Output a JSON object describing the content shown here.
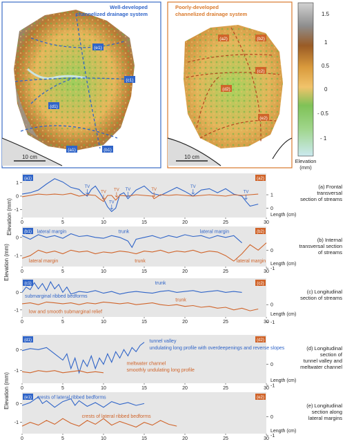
{
  "maps": {
    "left": {
      "title_line1": "Well-developed",
      "title_line2": "channelized drainage system",
      "scale_label": "10 cm",
      "frame_color": "#3a6cc4",
      "markers": [
        "(a1)",
        "(b1)",
        "(c1)",
        "(d1)",
        "(e1)"
      ]
    },
    "right": {
      "title_line1": "Poorly-developed",
      "title_line2": "channelized drainage system",
      "scale_label": "10 cm",
      "frame_color": "#d9792b",
      "markers": [
        "(a2)",
        "(b2)",
        "(c2)",
        "(d2)",
        "(e2)"
      ]
    },
    "colorbar": {
      "ticks": [
        "1.5",
        "1",
        "0.5",
        "0",
        "- 0.5",
        "- 1"
      ],
      "label_line1": "Elevation",
      "label_line2": "(mm)",
      "colors": [
        "#c8e8ef",
        "#8fcf6e",
        "#6fb84c",
        "#e9b95a",
        "#c9862f",
        "#9b5a22",
        "#8b8b8b",
        "#c8c8c8"
      ]
    }
  },
  "axes": {
    "left_ylabel": "Elevation (mm)",
    "xlabel": "Length (cm)",
    "x_ticks": [
      "0",
      "5",
      "10",
      "15",
      "20",
      "25",
      "30"
    ]
  },
  "colors": {
    "blue": "#2f64c8",
    "orange": "#d0642a",
    "panel_bg": "#e6e6e6"
  },
  "chart_data": [
    {
      "type": "line",
      "panel": "a",
      "tag_left": "(a1)",
      "tag_right": "(a2)",
      "caption": [
        "(a) Frontal",
        "transversal",
        "section of streams"
      ],
      "x_range": [
        0,
        30
      ],
      "left_ticks": [
        "1",
        "0",
        "-1"
      ],
      "right_ticks": [
        "1",
        "0"
      ],
      "annotations": [
        {
          "text": "TV",
          "x": 8.0,
          "series": "blue"
        },
        {
          "text": "TV",
          "x": 11.0,
          "series": "blue"
        },
        {
          "text": "TV",
          "x": 13.0,
          "series": "blue"
        },
        {
          "text": "TV",
          "x": 21.0,
          "series": "blue"
        },
        {
          "text": "TV",
          "x": 27.5,
          "series": "blue"
        },
        {
          "text": "TV",
          "x": 10.0,
          "series": "orange"
        },
        {
          "text": "TV",
          "x": 11.6,
          "series": "orange"
        },
        {
          "text": "TV",
          "x": 16.2,
          "series": "orange"
        }
      ],
      "series": [
        {
          "color": "blue",
          "x": [
            0,
            1,
            2,
            3,
            4,
            5,
            6,
            7,
            7.5,
            8,
            8.5,
            9,
            9.5,
            10,
            10.5,
            11,
            11.5,
            12,
            12.5,
            13,
            14,
            15,
            16,
            17,
            18,
            19,
            20,
            21,
            22,
            23,
            24,
            25,
            26,
            27,
            27.5,
            28,
            29
          ],
          "y": [
            0.15,
            0.25,
            0.45,
            0.9,
            1.3,
            1.05,
            0.65,
            0.5,
            0.2,
            0.0,
            0.5,
            0.75,
            0.3,
            -0.2,
            -0.8,
            -1.15,
            -0.9,
            0.1,
            0.25,
            -0.2,
            0.45,
            0.75,
            0.2,
            0.05,
            0.35,
            0.65,
            0.35,
            0.0,
            0.45,
            0.55,
            0.25,
            0.55,
            0.15,
            0.0,
            -0.4,
            -0.75,
            -0.6
          ]
        },
        {
          "color": "orange",
          "x": [
            0,
            1,
            2,
            3,
            4,
            5,
            6,
            7,
            8,
            9,
            9.5,
            10,
            10.5,
            11,
            11.5,
            12,
            13,
            14,
            15,
            16,
            16.2,
            17,
            18,
            19,
            20,
            21,
            22,
            23,
            24,
            25,
            26,
            27,
            28,
            29
          ],
          "y": [
            -0.05,
            0.05,
            0.15,
            0.1,
            0.15,
            0.1,
            0.2,
            0.0,
            0.1,
            0.05,
            -0.2,
            -0.4,
            0.05,
            0.05,
            -0.3,
            0.05,
            0.0,
            0.1,
            0.05,
            0.0,
            -0.2,
            0.1,
            0.05,
            0.1,
            0.05,
            0.0,
            0.05,
            0.1,
            0.05,
            0.0,
            0.1,
            0.05,
            0.1,
            0.15
          ]
        }
      ]
    },
    {
      "type": "line",
      "panel": "b",
      "tag_left": "(b1)",
      "tag_right": "(b2)",
      "caption": [
        "(b) Internal",
        "transversal section",
        "of streams"
      ],
      "x_range": [
        0,
        30
      ],
      "left_ticks": [
        "0",
        "-1"
      ],
      "right_ticks": [
        "0",
        "-1"
      ],
      "labels": [
        {
          "text": "lateral margin",
          "x": 1.5,
          "row": "top",
          "color": "blue"
        },
        {
          "text": "trunk",
          "x": 11.5,
          "row": "top",
          "color": "blue"
        },
        {
          "text": "lateral margin",
          "x": 21.5,
          "row": "top",
          "color": "blue"
        },
        {
          "text": "lateral margin",
          "x": 0.5,
          "row": "bottom",
          "color": "orange"
        },
        {
          "text": "trunk",
          "x": 13.5,
          "row": "bottom",
          "color": "orange"
        },
        {
          "text": "lateral margin",
          "x": 26.0,
          "row": "bottom",
          "color": "orange"
        }
      ],
      "series": [
        {
          "color": "blue",
          "x": [
            0,
            1,
            2,
            3,
            4,
            5,
            6,
            7,
            8,
            9,
            10,
            11,
            12,
            13,
            13.5,
            14,
            15,
            16,
            17,
            18,
            19,
            20,
            21,
            22,
            23,
            24,
            25,
            26,
            27
          ],
          "y": [
            0.1,
            -0.1,
            0.15,
            0.0,
            0.1,
            -0.05,
            0.2,
            0.05,
            0.1,
            0.0,
            -0.05,
            0.1,
            0.0,
            -0.2,
            -0.55,
            -0.1,
            0.0,
            0.1,
            -0.05,
            0.1,
            0.0,
            0.15,
            0.05,
            0.1,
            -0.05,
            0.1,
            0.0,
            0.1,
            -0.3
          ]
        },
        {
          "color": "orange",
          "x": [
            0,
            1,
            2,
            3,
            4,
            5,
            6,
            7,
            8,
            9,
            10,
            11,
            12,
            13,
            14,
            15,
            16,
            17,
            18,
            19,
            20,
            21,
            22,
            23,
            24,
            25,
            26,
            27,
            28,
            29,
            30
          ],
          "y": [
            -1.15,
            -1.0,
            -0.7,
            -0.85,
            -0.75,
            -0.9,
            -0.7,
            -0.8,
            -0.75,
            -0.9,
            -0.8,
            -0.85,
            -0.75,
            -0.8,
            -0.9,
            -0.75,
            -0.8,
            -0.7,
            -0.85,
            -0.75,
            -0.8,
            -0.7,
            -0.85,
            -0.75,
            -0.8,
            -1.0,
            -1.3,
            -0.9,
            -0.4,
            -0.7,
            -0.3
          ]
        }
      ]
    },
    {
      "type": "line",
      "panel": "c",
      "tag_left": "(c1)",
      "tag_right": "(c2)",
      "caption": [
        "(c) Longitudinal",
        "section of streams"
      ],
      "x_range": [
        0,
        30
      ],
      "left_ticks": [
        "0",
        "-1"
      ],
      "right_ticks": [
        "0",
        "-1"
      ],
      "labels": [
        {
          "text": "trunk",
          "x": 16.0,
          "row": "top",
          "color": "blue"
        },
        {
          "text": "submarginal ribbed bedforms",
          "x": 0.0,
          "row": "middle",
          "color": "blue"
        },
        {
          "text": "trunk",
          "x": 18.5,
          "row": "middle2",
          "color": "orange"
        },
        {
          "text": "low and smooth submarginal relief",
          "x": 0.5,
          "row": "bottom",
          "color": "orange"
        }
      ],
      "series": [
        {
          "color": "blue",
          "x": [
            0,
            0.5,
            1,
            1.5,
            2,
            2.5,
            3,
            3.5,
            4,
            4.5,
            5,
            5.5,
            6,
            7,
            8,
            9,
            10,
            11,
            12,
            13,
            14,
            15,
            16,
            17,
            18,
            19,
            20,
            21,
            22,
            23,
            24,
            25,
            26,
            27
          ],
          "y": [
            0.0,
            0.3,
            0.15,
            0.55,
            0.2,
            0.5,
            0.1,
            0.6,
            0.2,
            0.45,
            0.0,
            0.3,
            -0.1,
            0.05,
            0.0,
            0.1,
            -0.05,
            0.05,
            -0.1,
            0.0,
            0.05,
            0.0,
            -0.05,
            0.05,
            0.1,
            0.0,
            0.05,
            0.1,
            0.0,
            0.05,
            0.1,
            0.0,
            0.05,
            0.0
          ]
        },
        {
          "color": "orange",
          "x": [
            0,
            1,
            2,
            3,
            4,
            5,
            6,
            7,
            8,
            9,
            10,
            11,
            12,
            13,
            14,
            15,
            16,
            17,
            18,
            19,
            20,
            21,
            22,
            23,
            24,
            25,
            26,
            27,
            28,
            29
          ],
          "y": [
            -0.65,
            -0.6,
            -0.7,
            -0.55,
            -0.6,
            -0.65,
            -0.6,
            -0.7,
            -0.6,
            -0.65,
            -0.55,
            -0.6,
            -0.65,
            -0.6,
            -0.7,
            -0.65,
            -0.6,
            -0.7,
            -0.75,
            -0.7,
            -0.8,
            -0.75,
            -0.85,
            -0.8,
            -0.9,
            -0.85,
            -1.0,
            -0.9,
            -1.05,
            -0.95
          ]
        }
      ]
    },
    {
      "type": "line",
      "panel": "d",
      "tag_left": "(d1)",
      "tag_right": "(d2)",
      "caption": [
        "(d) Longitudinal",
        "section of",
        "tunnel valley and",
        "meltwater channel"
      ],
      "x_range": [
        0,
        30
      ],
      "left_ticks": [
        "0",
        "-1"
      ],
      "right_ticks": [
        "0",
        "-1"
      ],
      "labels": [
        {
          "text": "tunnel valley",
          "x": 15.3,
          "row": "top",
          "color": "blue"
        },
        {
          "text": "undulating long profile with overdeepenings and reverse slopes",
          "x": 15.3,
          "row": "top2",
          "color": "blue"
        },
        {
          "text": "meltwater channel",
          "x": 12.5,
          "row": "mid",
          "color": "orange"
        },
        {
          "text": "smoothly undulating long profile",
          "x": 12.5,
          "row": "mid2",
          "color": "orange"
        }
      ],
      "series": [
        {
          "color": "blue",
          "x": [
            0,
            1,
            2,
            3,
            4,
            5,
            5.5,
            6,
            6.5,
            7,
            7.5,
            8,
            8.5,
            9,
            9.5,
            10,
            10.5,
            11,
            11.5,
            12,
            12.5,
            13,
            13.5,
            14,
            14.5,
            15
          ],
          "y": [
            -0.05,
            0.05,
            0.0,
            0.1,
            -0.2,
            -0.5,
            -0.2,
            -0.9,
            -0.4,
            -1.1,
            -0.5,
            -0.8,
            -0.3,
            -0.9,
            -0.4,
            -0.7,
            -0.2,
            -0.6,
            -0.1,
            -0.4,
            0.0,
            -0.3,
            0.1,
            -0.1,
            0.2,
            0.35
          ]
        },
        {
          "color": "orange",
          "x": [
            0,
            1,
            2,
            3,
            4,
            5,
            6,
            7,
            8,
            9,
            10
          ],
          "y": [
            -1.05,
            -1.1,
            -1.0,
            -1.05,
            -1.0,
            -1.1,
            -1.05,
            -1.0,
            -1.1,
            -1.05,
            -1.1
          ]
        }
      ]
    },
    {
      "type": "line",
      "panel": "e",
      "tag_left": "(e1)",
      "tag_right": "(e2)",
      "caption": [
        "(e) Longitudinal",
        "section along",
        "lateral margins"
      ],
      "x_range": [
        0,
        30
      ],
      "left_ticks": [
        "0",
        "-1"
      ],
      "right_ticks": [
        "0",
        "-1"
      ],
      "labels": [
        {
          "text": "crests of lateral ribbed bedforms",
          "x": 1.5,
          "row": "top",
          "color": "blue"
        },
        {
          "text": "crests of lateral ribbed bedforms",
          "x": 7.0,
          "row": "mid",
          "color": "orange"
        }
      ],
      "series": [
        {
          "color": "blue",
          "x": [
            0,
            1,
            2,
            2.5,
            3,
            4,
            5,
            6,
            6.5,
            7,
            8,
            9,
            10,
            11,
            12,
            13,
            14,
            15
          ],
          "y": [
            -0.1,
            0.05,
            0.35,
            0.0,
            0.15,
            -0.2,
            0.1,
            0.25,
            -0.1,
            0.15,
            -0.15,
            0.05,
            -0.2,
            0.1,
            -0.05,
            0.05,
            -0.1,
            0.0
          ]
        },
        {
          "color": "orange",
          "x": [
            0,
            1,
            2,
            3,
            4,
            5,
            6,
            7,
            8,
            9,
            10,
            11,
            12,
            13,
            14,
            15,
            16,
            17,
            18,
            19
          ],
          "y": [
            -1.2,
            -1.0,
            -1.15,
            -0.9,
            -1.1,
            -0.8,
            -1.05,
            -1.2,
            -0.9,
            -1.1,
            -0.8,
            -1.15,
            -0.95,
            -1.1,
            -1.25,
            -1.0,
            -1.15,
            -0.9,
            -1.1,
            -1.2
          ]
        }
      ]
    }
  ]
}
